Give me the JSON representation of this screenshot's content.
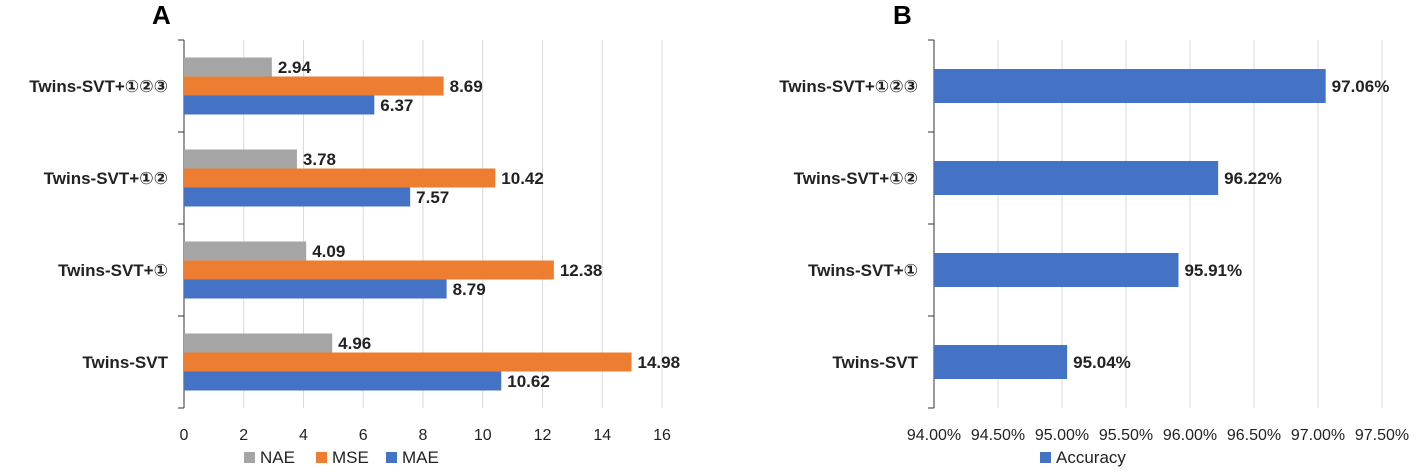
{
  "chart_data": [
    {
      "panel": "A",
      "type": "bar",
      "orientation": "horizontal",
      "categories": [
        "Twins-SVT+①②③",
        "Twins-SVT+①②",
        "Twins-SVT+①",
        "Twins-SVT"
      ],
      "series": [
        {
          "name": "NAE",
          "color": "#a5a5a5",
          "values": [
            2.94,
            3.78,
            4.09,
            4.96
          ],
          "labels": [
            "2.94",
            "3.78",
            "4.09",
            "4.96"
          ]
        },
        {
          "name": "MSE",
          "color": "#ed7d31",
          "values": [
            8.69,
            10.42,
            12.38,
            14.98
          ],
          "labels": [
            "8.69",
            "10.42",
            "12.38",
            "14.98"
          ]
        },
        {
          "name": "MAE",
          "color": "#4472c4",
          "values": [
            6.37,
            7.57,
            8.79,
            10.62
          ],
          "labels": [
            "6.37",
            "7.57",
            "8.79",
            "10.62"
          ]
        }
      ],
      "xlim": [
        0,
        16
      ],
      "xticks": [
        "0",
        "2",
        "4",
        "6",
        "8",
        "10",
        "12",
        "14",
        "16"
      ],
      "grid": true,
      "legend_position": "bottom"
    },
    {
      "panel": "B",
      "type": "bar",
      "orientation": "horizontal",
      "categories": [
        "Twins-SVT+①②③",
        "Twins-SVT+①②",
        "Twins-SVT+①",
        "Twins-SVT"
      ],
      "series": [
        {
          "name": "Accuracy",
          "color": "#4472c4",
          "values": [
            97.06,
            96.22,
            95.91,
            95.04
          ],
          "labels": [
            "97.06%",
            "96.22%",
            "95.91%",
            "95.04%"
          ]
        }
      ],
      "xlim": [
        94.0,
        97.5
      ],
      "xticks": [
        "94.00%",
        "94.50%",
        "95.00%",
        "95.50%",
        "96.00%",
        "96.50%",
        "97.00%",
        "97.50%"
      ],
      "grid": true,
      "legend_position": "bottom"
    }
  ]
}
